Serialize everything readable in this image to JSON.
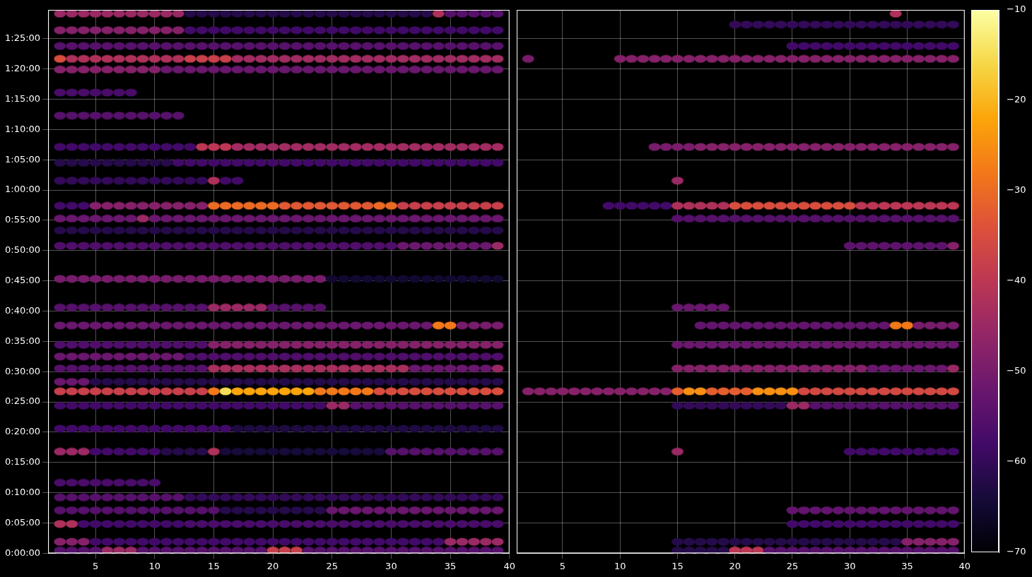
{
  "chart_data": [
    {
      "type": "heatmap",
      "grid": true,
      "tick_labels": true,
      "xlim": [
        1,
        40
      ],
      "xticks": [
        5,
        10,
        15,
        20,
        25,
        30,
        35,
        40
      ],
      "ylim": [
        0,
        5385
      ],
      "yticks": [
        {
          "value": 0,
          "label": "0:00:00"
        },
        {
          "value": 300,
          "label": "0:05:00"
        },
        {
          "value": 600,
          "label": "0:10:00"
        },
        {
          "value": 900,
          "label": "0:15:00"
        },
        {
          "value": 1200,
          "label": "0:20:00"
        },
        {
          "value": 1500,
          "label": "0:25:00"
        },
        {
          "value": 1800,
          "label": "0:30:00"
        },
        {
          "value": 2100,
          "label": "0:35:00"
        },
        {
          "value": 2400,
          "label": "0:40:00"
        },
        {
          "value": 2700,
          "label": "0:45:00"
        },
        {
          "value": 3000,
          "label": "0:50:00"
        },
        {
          "value": 3300,
          "label": "0:55:00"
        },
        {
          "value": 3600,
          "label": "1:00:00"
        },
        {
          "value": 3900,
          "label": "1:05:00"
        },
        {
          "value": 4200,
          "label": "1:10:00"
        },
        {
          "value": 4500,
          "label": "1:15:00"
        },
        {
          "value": 4800,
          "label": "1:20:00"
        },
        {
          "value": 5100,
          "label": "1:25:00"
        }
      ],
      "cells": [
        {
          "y": 28,
          "x_from": 2,
          "x_to": 5,
          "value": -55
        },
        {
          "y": 28,
          "x_from": 6,
          "x_to": 8,
          "value": -45
        },
        {
          "y": 28,
          "x_from": 9,
          "x_to": 19,
          "value": -55
        },
        {
          "y": 28,
          "x_from": 20,
          "x_to": 22,
          "value": -38
        },
        {
          "y": 28,
          "x_from": 23,
          "x_to": 39,
          "value": -55
        },
        {
          "y": 114,
          "x_from": 2,
          "x_to": 4,
          "value": -48
        },
        {
          "y": 114,
          "x_from": 5,
          "x_to": 34,
          "value": -58
        },
        {
          "y": 114,
          "x_from": 35,
          "x_to": 39,
          "value": -45
        },
        {
          "y": 291,
          "x_from": 2,
          "x_to": 3,
          "value": -42
        },
        {
          "y": 291,
          "x_from": 4,
          "x_to": 12,
          "value": -58
        },
        {
          "y": 291,
          "x_from": 13,
          "x_to": 39,
          "value": -57
        },
        {
          "y": 426,
          "x_from": 2,
          "x_to": 15,
          "value": -55
        },
        {
          "y": 426,
          "x_from": 16,
          "x_to": 24,
          "value": -62
        },
        {
          "y": 426,
          "x_from": 25,
          "x_to": 39,
          "value": -52
        },
        {
          "y": 554,
          "x_from": 2,
          "x_to": 12,
          "value": -55
        },
        {
          "y": 554,
          "x_from": 13,
          "x_to": 39,
          "value": -60
        },
        {
          "y": 700,
          "x_from": 2,
          "x_to": 10,
          "value": -57
        },
        {
          "y": 1008,
          "x_from": 2,
          "x_to": 4,
          "value": -45
        },
        {
          "y": 1008,
          "x_from": 5,
          "x_to": 10,
          "value": -58
        },
        {
          "y": 1008,
          "x_from": 11,
          "x_to": 14,
          "value": -62
        },
        {
          "y": 1008,
          "x_from": 15,
          "x_to": 15,
          "value": -42
        },
        {
          "y": 1008,
          "x_from": 16,
          "x_to": 29,
          "value": -64
        },
        {
          "y": 1008,
          "x_from": 30,
          "x_to": 39,
          "value": -55
        },
        {
          "y": 1235,
          "x_from": 2,
          "x_to": 16,
          "value": -58
        },
        {
          "y": 1235,
          "x_from": 17,
          "x_to": 39,
          "value": -63
        },
        {
          "y": 1463,
          "x_from": 2,
          "x_to": 24,
          "value": -58
        },
        {
          "y": 1463,
          "x_from": 25,
          "x_to": 26,
          "value": -45
        },
        {
          "y": 1463,
          "x_from": 27,
          "x_to": 39,
          "value": -55
        },
        {
          "y": 1605,
          "x_from": 2,
          "x_to": 14,
          "value": -38
        },
        {
          "y": 1605,
          "x_from": 15,
          "x_to": 15,
          "value": -28
        },
        {
          "y": 1605,
          "x_from": 16,
          "x_to": 16,
          "value": -15
        },
        {
          "y": 1605,
          "x_from": 17,
          "x_to": 23,
          "value": -22
        },
        {
          "y": 1605,
          "x_from": 24,
          "x_to": 28,
          "value": -28
        },
        {
          "y": 1605,
          "x_from": 29,
          "x_to": 39,
          "value": -35
        },
        {
          "y": 1700,
          "x_from": 2,
          "x_to": 4,
          "value": -52
        },
        {
          "y": 1700,
          "x_from": 5,
          "x_to": 39,
          "value": -62
        },
        {
          "y": 1832,
          "x_from": 2,
          "x_to": 14,
          "value": -55
        },
        {
          "y": 1832,
          "x_from": 15,
          "x_to": 31,
          "value": -43
        },
        {
          "y": 1832,
          "x_from": 32,
          "x_to": 38,
          "value": -52
        },
        {
          "y": 1832,
          "x_from": 39,
          "x_to": 39,
          "value": -45
        },
        {
          "y": 1950,
          "x_from": 2,
          "x_to": 12,
          "value": -52
        },
        {
          "y": 1950,
          "x_from": 13,
          "x_to": 39,
          "value": -56
        },
        {
          "y": 2066,
          "x_from": 2,
          "x_to": 14,
          "value": -56
        },
        {
          "y": 2066,
          "x_from": 15,
          "x_to": 39,
          "value": -48
        },
        {
          "y": 2258,
          "x_from": 2,
          "x_to": 33,
          "value": -52
        },
        {
          "y": 2258,
          "x_from": 34,
          "x_to": 35,
          "value": -28
        },
        {
          "y": 2258,
          "x_from": 36,
          "x_to": 39,
          "value": -50
        },
        {
          "y": 2436,
          "x_from": 2,
          "x_to": 14,
          "value": -55
        },
        {
          "y": 2436,
          "x_from": 15,
          "x_to": 19,
          "value": -45
        },
        {
          "y": 2436,
          "x_from": 20,
          "x_to": 24,
          "value": -55
        },
        {
          "y": 2720,
          "x_from": 2,
          "x_to": 24,
          "value": -50
        },
        {
          "y": 2720,
          "x_from": 25,
          "x_to": 39,
          "value": -65
        },
        {
          "y": 3047,
          "x_from": 2,
          "x_to": 30,
          "value": -56
        },
        {
          "y": 3047,
          "x_from": 31,
          "x_to": 38,
          "value": -52
        },
        {
          "y": 3047,
          "x_from": 39,
          "x_to": 39,
          "value": -45
        },
        {
          "y": 3200,
          "x_from": 2,
          "x_to": 39,
          "value": -62
        },
        {
          "y": 3317,
          "x_from": 2,
          "x_to": 8,
          "value": -52
        },
        {
          "y": 3317,
          "x_from": 9,
          "x_to": 9,
          "value": -45
        },
        {
          "y": 3317,
          "x_from": 10,
          "x_to": 39,
          "value": -52
        },
        {
          "y": 3444,
          "x_from": 2,
          "x_to": 4,
          "value": -58
        },
        {
          "y": 3444,
          "x_from": 5,
          "x_to": 14,
          "value": -48
        },
        {
          "y": 3444,
          "x_from": 15,
          "x_to": 20,
          "value": -30
        },
        {
          "y": 3444,
          "x_from": 21,
          "x_to": 28,
          "value": -33
        },
        {
          "y": 3444,
          "x_from": 29,
          "x_to": 30,
          "value": -30
        },
        {
          "y": 3444,
          "x_from": 31,
          "x_to": 39,
          "value": -38
        },
        {
          "y": 3693,
          "x_from": 2,
          "x_to": 14,
          "value": -60
        },
        {
          "y": 3693,
          "x_from": 15,
          "x_to": 15,
          "value": -42
        },
        {
          "y": 3693,
          "x_from": 16,
          "x_to": 17,
          "value": -58
        },
        {
          "y": 3870,
          "x_from": 2,
          "x_to": 11,
          "value": -62
        },
        {
          "y": 3870,
          "x_from": 12,
          "x_to": 39,
          "value": -58
        },
        {
          "y": 4027,
          "x_from": 2,
          "x_to": 13,
          "value": -58
        },
        {
          "y": 4027,
          "x_from": 14,
          "x_to": 16,
          "value": -40
        },
        {
          "y": 4027,
          "x_from": 17,
          "x_to": 39,
          "value": -44
        },
        {
          "y": 4338,
          "x_from": 2,
          "x_to": 12,
          "value": -55
        },
        {
          "y": 4566,
          "x_from": 2,
          "x_to": 8,
          "value": -57
        },
        {
          "y": 4794,
          "x_from": 2,
          "x_to": 10,
          "value": -48
        },
        {
          "y": 4794,
          "x_from": 11,
          "x_to": 39,
          "value": -52
        },
        {
          "y": 4900,
          "x_from": 2,
          "x_to": 2,
          "value": -35
        },
        {
          "y": 4900,
          "x_from": 3,
          "x_to": 12,
          "value": -42
        },
        {
          "y": 4900,
          "x_from": 13,
          "x_to": 16,
          "value": -38
        },
        {
          "y": 4900,
          "x_from": 17,
          "x_to": 39,
          "value": -44
        },
        {
          "y": 5027,
          "x_from": 2,
          "x_to": 39,
          "value": -55
        },
        {
          "y": 5184,
          "x_from": 2,
          "x_to": 12,
          "value": -48
        },
        {
          "y": 5184,
          "x_from": 13,
          "x_to": 39,
          "value": -58
        },
        {
          "y": 5348,
          "x_from": 2,
          "x_to": 12,
          "value": -45
        },
        {
          "y": 5348,
          "x_from": 13,
          "x_to": 33,
          "value": -62
        },
        {
          "y": 5348,
          "x_from": 34,
          "x_to": 34,
          "value": -42
        },
        {
          "y": 5348,
          "x_from": 35,
          "x_to": 39,
          "value": -55
        }
      ]
    },
    {
      "type": "heatmap",
      "grid": true,
      "tick_labels": "x",
      "xlim": [
        1,
        40
      ],
      "xticks": [
        5,
        10,
        15,
        20,
        25,
        30,
        35,
        40
      ],
      "ylim": [
        0,
        5385
      ],
      "yticks": [
        0,
        300,
        600,
        900,
        1200,
        1500,
        1800,
        2100,
        2400,
        2700,
        3000,
        3300,
        3600,
        3900,
        4200,
        4500,
        4800,
        5100
      ],
      "cells": [
        {
          "y": 28,
          "x_from": 15,
          "x_to": 19,
          "value": -62
        },
        {
          "y": 28,
          "x_from": 20,
          "x_to": 22,
          "value": -40
        },
        {
          "y": 28,
          "x_from": 23,
          "x_to": 39,
          "value": -55
        },
        {
          "y": 114,
          "x_from": 15,
          "x_to": 34,
          "value": -62
        },
        {
          "y": 114,
          "x_from": 35,
          "x_to": 39,
          "value": -48
        },
        {
          "y": 291,
          "x_from": 25,
          "x_to": 39,
          "value": -58
        },
        {
          "y": 426,
          "x_from": 25,
          "x_to": 39,
          "value": -53
        },
        {
          "y": 1008,
          "x_from": 15,
          "x_to": 15,
          "value": -45
        },
        {
          "y": 1008,
          "x_from": 30,
          "x_to": 39,
          "value": -58
        },
        {
          "y": 1463,
          "x_from": 15,
          "x_to": 24,
          "value": -60
        },
        {
          "y": 1463,
          "x_from": 25,
          "x_to": 26,
          "value": -45
        },
        {
          "y": 1463,
          "x_from": 27,
          "x_to": 39,
          "value": -55
        },
        {
          "y": 1605,
          "x_from": 2,
          "x_to": 14,
          "value": -48
        },
        {
          "y": 1605,
          "x_from": 15,
          "x_to": 15,
          "value": -32
        },
        {
          "y": 1605,
          "x_from": 16,
          "x_to": 17,
          "value": -25
        },
        {
          "y": 1605,
          "x_from": 18,
          "x_to": 21,
          "value": -32
        },
        {
          "y": 1605,
          "x_from": 22,
          "x_to": 25,
          "value": -25
        },
        {
          "y": 1605,
          "x_from": 26,
          "x_to": 39,
          "value": -36
        },
        {
          "y": 1832,
          "x_from": 15,
          "x_to": 31,
          "value": -48
        },
        {
          "y": 1832,
          "x_from": 32,
          "x_to": 38,
          "value": -52
        },
        {
          "y": 1832,
          "x_from": 39,
          "x_to": 39,
          "value": -45
        },
        {
          "y": 2066,
          "x_from": 15,
          "x_to": 39,
          "value": -52
        },
        {
          "y": 2258,
          "x_from": 17,
          "x_to": 33,
          "value": -53
        },
        {
          "y": 2258,
          "x_from": 34,
          "x_to": 35,
          "value": -28
        },
        {
          "y": 2258,
          "x_from": 36,
          "x_to": 39,
          "value": -50
        },
        {
          "y": 2436,
          "x_from": 15,
          "x_to": 19,
          "value": -52
        },
        {
          "y": 3047,
          "x_from": 30,
          "x_to": 38,
          "value": -54
        },
        {
          "y": 3047,
          "x_from": 39,
          "x_to": 39,
          "value": -48
        },
        {
          "y": 3317,
          "x_from": 15,
          "x_to": 39,
          "value": -55
        },
        {
          "y": 3444,
          "x_from": 9,
          "x_to": 14,
          "value": -58
        },
        {
          "y": 3444,
          "x_from": 15,
          "x_to": 19,
          "value": -42
        },
        {
          "y": 3444,
          "x_from": 20,
          "x_to": 30,
          "value": -35
        },
        {
          "y": 3444,
          "x_from": 31,
          "x_to": 39,
          "value": -40
        },
        {
          "y": 3693,
          "x_from": 15,
          "x_to": 15,
          "value": -45
        },
        {
          "y": 4027,
          "x_from": 13,
          "x_to": 16,
          "value": -50
        },
        {
          "y": 4027,
          "x_from": 17,
          "x_to": 39,
          "value": -48
        },
        {
          "y": 4900,
          "x_from": 2,
          "x_to": 2,
          "value": -50
        },
        {
          "y": 4900,
          "x_from": 10,
          "x_to": 39,
          "value": -48
        },
        {
          "y": 5027,
          "x_from": 25,
          "x_to": 39,
          "value": -58
        },
        {
          "y": 5240,
          "x_from": 20,
          "x_to": 39,
          "value": -60
        },
        {
          "y": 5348,
          "x_from": 34,
          "x_to": 34,
          "value": -42
        }
      ]
    }
  ],
  "colorbar": {
    "range": [
      -70,
      -10
    ],
    "ticks": [
      {
        "value": -70,
        "label": "−70"
      },
      {
        "value": -60,
        "label": "−60"
      },
      {
        "value": -50,
        "label": "−50"
      },
      {
        "value": -40,
        "label": "−40"
      },
      {
        "value": -30,
        "label": "−30"
      },
      {
        "value": -20,
        "label": "−20"
      },
      {
        "value": -10,
        "label": "−10"
      }
    ]
  }
}
